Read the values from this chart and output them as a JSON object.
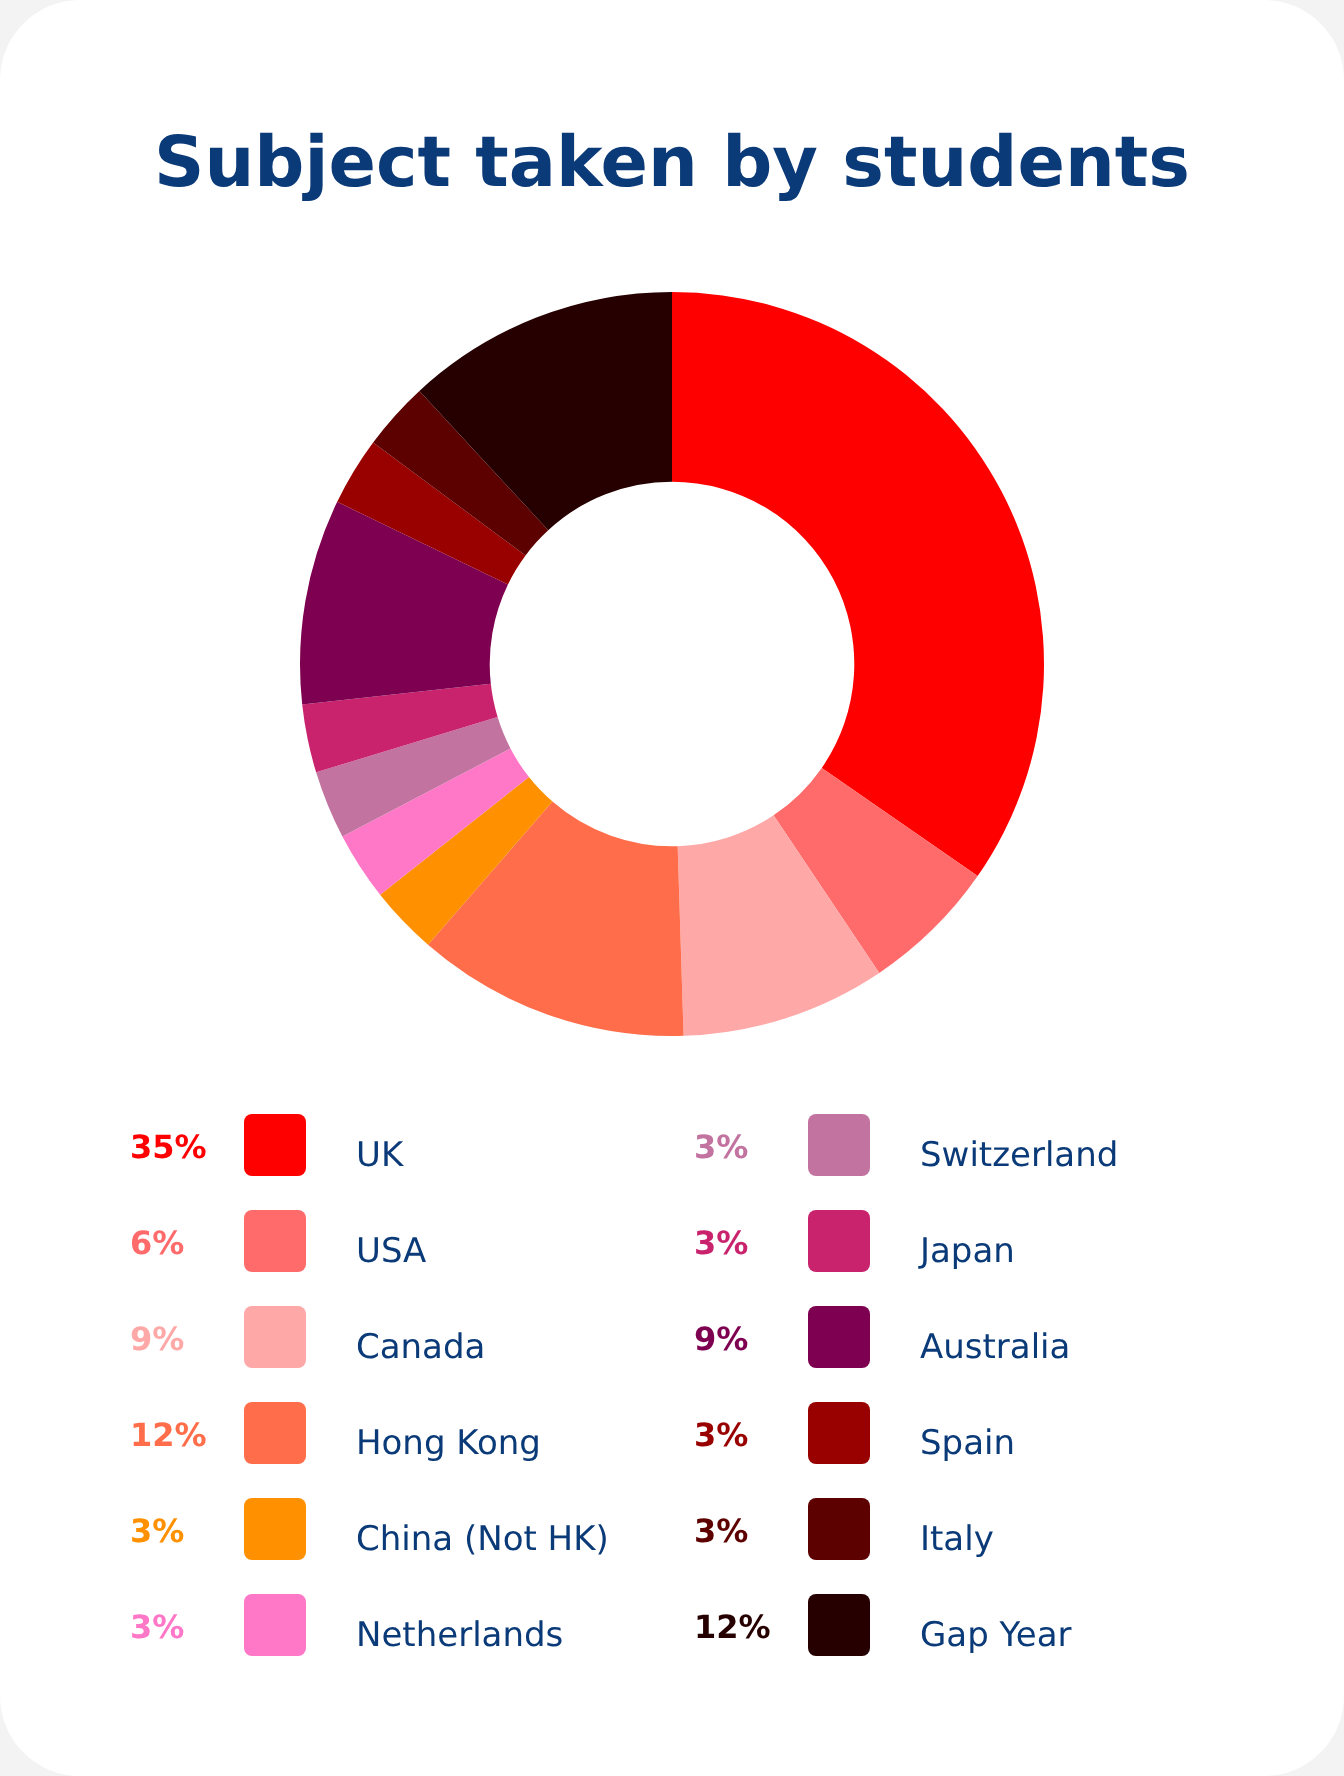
{
  "chart_data": {
    "type": "donut",
    "title": "Subject taken by students",
    "categories": [
      "UK",
      "USA",
      "Canada",
      "Hong Kong",
      "China (Not HK)",
      "Netherlands",
      "Switzerland",
      "Japan",
      "Australia",
      "Spain",
      "Italy",
      "Gap Year"
    ],
    "values": [
      35,
      6,
      9,
      12,
      3,
      3,
      3,
      3,
      9,
      3,
      3,
      12
    ],
    "value_labels": [
      "35%",
      "6%",
      "9%",
      "12%",
      "3%",
      "3%",
      "3%",
      "3%",
      "9%",
      "3%",
      "3%",
      "12%"
    ],
    "colors": [
      "#ff0000",
      "#ff6b6b",
      "#ffa8a8",
      "#ff6d4a",
      "#ff9000",
      "#ff78c8",
      "#c2739f",
      "#c9236e",
      "#7e0050",
      "#990000",
      "#5c0000",
      "#260000"
    ],
    "legend": "bottom"
  }
}
